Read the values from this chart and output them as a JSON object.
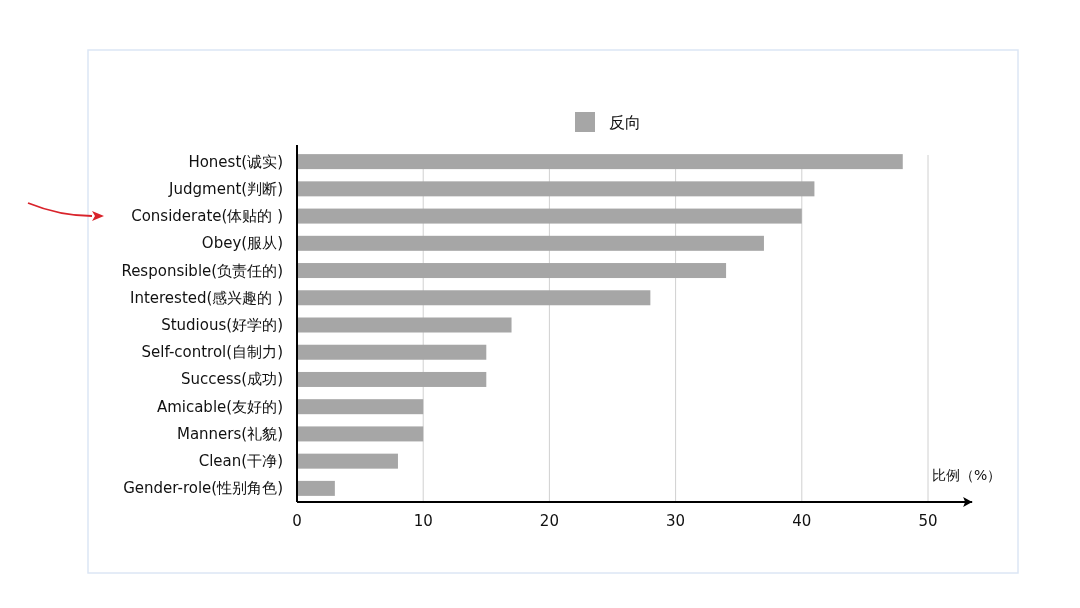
{
  "chart_data": {
    "type": "bar",
    "orientation": "horizontal",
    "xlabel": "比例（%）",
    "legend": "top",
    "categories": [
      "Honest(诚实)",
      "Judgment(判断)",
      "Considerate(体贴的 )",
      "Obey(服从)",
      "Responsible(负责任的)",
      "Interested(感兴趣的 )",
      "Studious(好学的)",
      "Self-control(自制力)",
      "Success(成功)",
      "Amicable(友好的)",
      "Manners(礼貌)",
      "Clean(干净)",
      "Gender-role(性别角色)"
    ],
    "series": [
      {
        "name": "反向",
        "color": "#a6a6a6",
        "values": [
          48,
          41,
          40,
          37,
          34,
          28,
          17,
          15,
          15,
          10,
          10,
          8,
          3
        ]
      }
    ],
    "xlim": [
      0,
      53.5
    ],
    "xticks": [
      0,
      10,
      20,
      30,
      40,
      50
    ],
    "grid": "x"
  }
}
